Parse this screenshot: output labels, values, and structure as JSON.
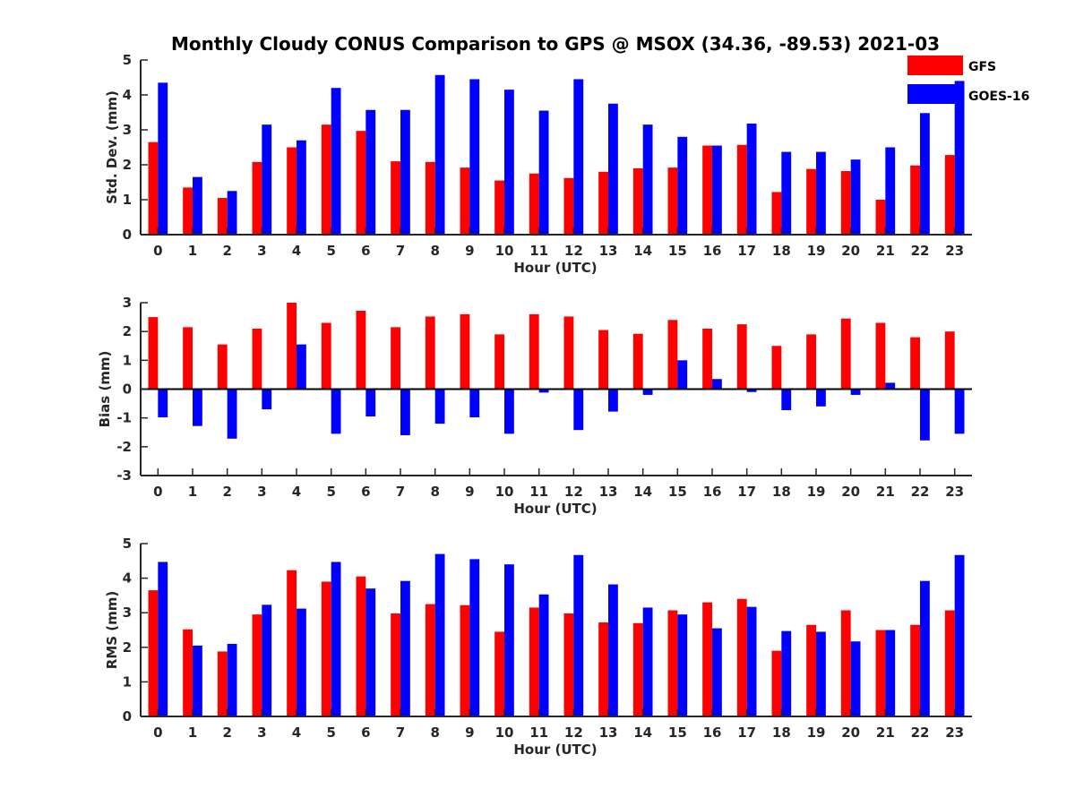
{
  "figure_title": "Monthly Cloudy CONUS Comparison to GPS @ MSOX (34.36, -89.53) 2021-03",
  "legend": [
    {
      "label": "GFS",
      "color": "#ff0000"
    },
    {
      "label": "GOES-16",
      "color": "#0000ff"
    }
  ],
  "chart_data": [
    {
      "type": "bar",
      "xlabel": "Hour (UTC)",
      "ylabel": "Std. Dev. (mm)",
      "ylim": [
        0,
        5
      ],
      "yticks": [
        0,
        1,
        2,
        3,
        4,
        5
      ],
      "categories": [
        "0",
        "1",
        "2",
        "3",
        "4",
        "5",
        "6",
        "7",
        "8",
        "9",
        "10",
        "11",
        "12",
        "13",
        "14",
        "15",
        "16",
        "17",
        "18",
        "19",
        "20",
        "21",
        "22",
        "23"
      ],
      "series": [
        {
          "name": "GFS",
          "color": "#ff0000",
          "values": [
            2.65,
            1.35,
            1.05,
            2.08,
            2.5,
            3.15,
            2.97,
            2.1,
            2.08,
            1.92,
            1.55,
            1.75,
            1.62,
            1.8,
            1.9,
            1.92,
            2.55,
            2.57,
            1.22,
            1.88,
            1.82,
            1.0,
            1.98,
            2.28
          ]
        },
        {
          "name": "GOES-16",
          "color": "#0000ff",
          "values": [
            4.35,
            1.65,
            1.25,
            3.15,
            2.7,
            4.2,
            3.57,
            3.57,
            4.57,
            4.45,
            4.15,
            3.55,
            4.45,
            3.75,
            3.15,
            2.8,
            2.55,
            3.18,
            2.37,
            2.37,
            2.15,
            2.5,
            3.48,
            4.4
          ]
        }
      ]
    },
    {
      "type": "bar",
      "xlabel": "Hour (UTC)",
      "ylabel": "Bias (mm)",
      "ylim": [
        -3,
        3
      ],
      "yticks": [
        -3,
        -2,
        -1,
        0,
        1,
        2,
        3
      ],
      "categories": [
        "0",
        "1",
        "2",
        "3",
        "4",
        "5",
        "6",
        "7",
        "8",
        "9",
        "10",
        "11",
        "12",
        "13",
        "14",
        "15",
        "16",
        "17",
        "18",
        "19",
        "20",
        "21",
        "22",
        "23"
      ],
      "series": [
        {
          "name": "GFS",
          "color": "#ff0000",
          "values": [
            2.5,
            2.15,
            1.55,
            2.1,
            3.0,
            2.3,
            2.72,
            2.15,
            2.52,
            2.6,
            1.9,
            2.6,
            2.52,
            2.05,
            1.92,
            2.4,
            2.1,
            2.25,
            1.5,
            1.9,
            2.45,
            2.3,
            1.8,
            2.0
          ]
        },
        {
          "name": "GOES-16",
          "color": "#0000ff",
          "values": [
            -0.98,
            -1.28,
            -1.72,
            -0.7,
            1.55,
            -1.55,
            -0.95,
            -1.6,
            -1.2,
            -0.98,
            -1.55,
            -0.12,
            -1.42,
            -0.78,
            -0.2,
            1.0,
            0.35,
            -0.1,
            -0.73,
            -0.6,
            -0.2,
            0.22,
            -1.78,
            -1.55
          ]
        }
      ]
    },
    {
      "type": "bar",
      "xlabel": "Hour (UTC)",
      "ylabel": "RMS (mm)",
      "ylim": [
        0,
        5
      ],
      "yticks": [
        0,
        1,
        2,
        3,
        4,
        5
      ],
      "categories": [
        "0",
        "1",
        "2",
        "3",
        "4",
        "5",
        "6",
        "7",
        "8",
        "9",
        "10",
        "11",
        "12",
        "13",
        "14",
        "15",
        "16",
        "17",
        "18",
        "19",
        "20",
        "21",
        "22",
        "23"
      ],
      "series": [
        {
          "name": "GFS",
          "color": "#ff0000",
          "values": [
            3.65,
            2.52,
            1.88,
            2.95,
            4.23,
            3.9,
            4.05,
            2.98,
            3.25,
            3.22,
            2.45,
            3.15,
            2.98,
            2.72,
            2.7,
            3.07,
            3.3,
            3.4,
            1.9,
            2.65,
            3.07,
            2.5,
            2.65,
            3.07
          ]
        },
        {
          "name": "GOES-16",
          "color": "#0000ff",
          "values": [
            4.47,
            2.05,
            2.1,
            3.23,
            3.12,
            4.47,
            3.7,
            3.92,
            4.7,
            4.55,
            4.4,
            3.53,
            4.67,
            3.82,
            3.15,
            2.95,
            2.55,
            3.17,
            2.47,
            2.45,
            2.17,
            2.5,
            3.92,
            4.67
          ]
        }
      ]
    }
  ]
}
